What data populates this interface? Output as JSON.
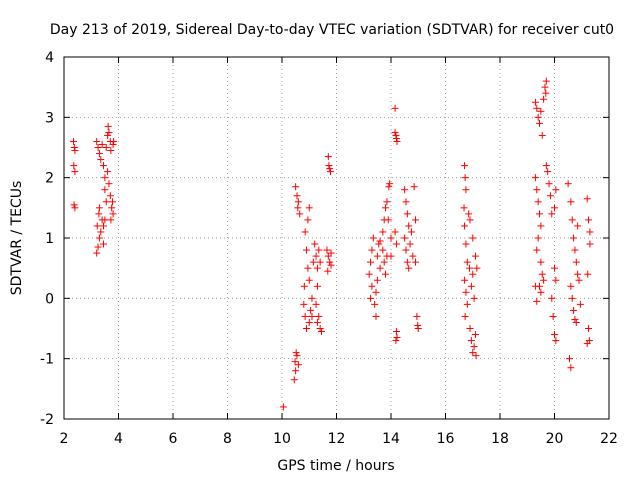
{
  "chart_data": {
    "type": "scatter",
    "title": "Day 213 of 2019, Sidereal Day-to-day VTEC variation (SDTVAR) for receiver cut0",
    "xlabel": "GPS time / hours",
    "ylabel": "SDTVAR / TECUs",
    "xlim": [
      2,
      22
    ],
    "ylim": [
      -2,
      4
    ],
    "xticks": [
      "2",
      "4",
      "6",
      "8",
      "10",
      "12",
      "14",
      "16",
      "18",
      "20",
      "22"
    ],
    "yticks": [
      "-2",
      "-1",
      "0",
      "1",
      "2",
      "3",
      "4"
    ],
    "grid": true,
    "marker": "+",
    "color": "#ff0000",
    "series": [
      {
        "name": "SDTVAR",
        "points": [
          [
            2.35,
            2.6
          ],
          [
            2.38,
            2.5
          ],
          [
            2.4,
            2.45
          ],
          [
            2.36,
            2.2
          ],
          [
            2.4,
            2.1
          ],
          [
            2.37,
            1.55
          ],
          [
            2.4,
            1.5
          ],
          [
            3.2,
            0.75
          ],
          [
            3.25,
            0.85
          ],
          [
            3.3,
            1.0
          ],
          [
            3.22,
            1.2
          ],
          [
            3.28,
            1.4
          ],
          [
            3.35,
            1.1
          ],
          [
            3.4,
            1.3
          ],
          [
            3.3,
            1.5
          ],
          [
            3.45,
            1.2
          ],
          [
            3.2,
            2.6
          ],
          [
            3.25,
            2.5
          ],
          [
            3.3,
            2.4
          ],
          [
            3.35,
            2.3
          ],
          [
            3.4,
            2.55
          ],
          [
            3.45,
            2.2
          ],
          [
            3.5,
            2.0
          ],
          [
            3.5,
            1.8
          ],
          [
            3.55,
            1.6
          ],
          [
            3.5,
            1.3
          ],
          [
            3.45,
            0.9
          ],
          [
            3.55,
            2.5
          ],
          [
            3.6,
            2.7
          ],
          [
            3.62,
            2.85
          ],
          [
            3.65,
            2.75
          ],
          [
            3.7,
            2.6
          ],
          [
            3.72,
            2.45
          ],
          [
            3.6,
            2.1
          ],
          [
            3.65,
            1.9
          ],
          [
            3.7,
            1.7
          ],
          [
            3.75,
            1.5
          ],
          [
            3.72,
            1.3
          ],
          [
            3.8,
            1.4
          ],
          [
            3.78,
            1.6
          ],
          [
            3.8,
            2.55
          ],
          [
            3.82,
            2.6
          ],
          [
            10.05,
            -1.8
          ],
          [
            10.45,
            -1.35
          ],
          [
            10.5,
            -1.2
          ],
          [
            10.48,
            -1.05
          ],
          [
            10.55,
            -0.95
          ],
          [
            10.6,
            -1.1
          ],
          [
            10.52,
            -0.9
          ],
          [
            10.5,
            1.85
          ],
          [
            10.55,
            1.7
          ],
          [
            10.6,
            1.6
          ],
          [
            10.58,
            1.5
          ],
          [
            10.65,
            1.4
          ],
          [
            10.8,
            -0.1
          ],
          [
            10.85,
            -0.3
          ],
          [
            10.9,
            -0.5
          ],
          [
            10.82,
            0.2
          ],
          [
            10.95,
            0.5
          ],
          [
            10.9,
            0.8
          ],
          [
            10.85,
            1.1
          ],
          [
            10.95,
            1.3
          ],
          [
            11.0,
            1.5
          ],
          [
            11.0,
            0.3
          ],
          [
            11.05,
            -0.2
          ],
          [
            11.0,
            -0.4
          ],
          [
            11.1,
            0.0
          ],
          [
            11.1,
            -0.3
          ],
          [
            11.15,
            0.6
          ],
          [
            11.2,
            0.9
          ],
          [
            11.25,
            0.7
          ],
          [
            11.3,
            0.5
          ],
          [
            11.35,
            0.8
          ],
          [
            11.4,
            0.6
          ],
          [
            11.3,
            0.2
          ],
          [
            11.25,
            -0.1
          ],
          [
            11.35,
            -0.3
          ],
          [
            11.4,
            -0.5
          ],
          [
            11.45,
            -0.55
          ],
          [
            11.3,
            -0.4
          ],
          [
            11.7,
            2.35
          ],
          [
            11.72,
            2.2
          ],
          [
            11.75,
            2.15
          ],
          [
            11.78,
            2.1
          ],
          [
            11.65,
            0.8
          ],
          [
            11.7,
            0.7
          ],
          [
            11.75,
            0.6
          ],
          [
            11.8,
            0.55
          ],
          [
            11.68,
            0.45
          ],
          [
            11.8,
            0.75
          ],
          [
            13.2,
            0.4
          ],
          [
            13.25,
            0.6
          ],
          [
            13.3,
            0.8
          ],
          [
            13.35,
            1.0
          ],
          [
            13.3,
            0.2
          ],
          [
            13.25,
            0.0
          ],
          [
            13.4,
            -0.1
          ],
          [
            13.45,
            -0.3
          ],
          [
            13.5,
            0.7
          ],
          [
            13.55,
            0.9
          ],
          [
            13.6,
            0.5
          ],
          [
            13.5,
            0.3
          ],
          [
            13.45,
            0.1
          ],
          [
            13.6,
            0.95
          ],
          [
            13.7,
            1.1
          ],
          [
            13.75,
            1.3
          ],
          [
            13.8,
            1.5
          ],
          [
            13.85,
            1.6
          ],
          [
            13.9,
            1.3
          ],
          [
            13.7,
            0.8
          ],
          [
            13.75,
            0.6
          ],
          [
            13.8,
            0.4
          ],
          [
            13.85,
            0.7
          ],
          [
            13.95,
            1.9
          ],
          [
            13.92,
            1.85
          ],
          [
            14.0,
            1.0
          ],
          [
            14.0,
            0.7
          ],
          [
            14.15,
            3.15
          ],
          [
            14.15,
            2.75
          ],
          [
            14.2,
            2.65
          ],
          [
            14.22,
            2.6
          ],
          [
            14.18,
            2.7
          ],
          [
            14.2,
            -0.55
          ],
          [
            14.22,
            -0.65
          ],
          [
            14.18,
            -0.7
          ],
          [
            14.15,
            1.1
          ],
          [
            14.2,
            0.9
          ],
          [
            14.5,
            1.8
          ],
          [
            14.55,
            1.6
          ],
          [
            14.6,
            1.4
          ],
          [
            14.65,
            1.2
          ],
          [
            14.5,
            1.0
          ],
          [
            14.55,
            0.8
          ],
          [
            14.6,
            0.6
          ],
          [
            14.65,
            0.5
          ],
          [
            14.7,
            0.9
          ],
          [
            14.75,
            1.1
          ],
          [
            14.8,
            0.7
          ],
          [
            14.85,
            1.85
          ],
          [
            14.9,
            0.6
          ],
          [
            14.95,
            -0.3
          ],
          [
            14.98,
            -0.45
          ],
          [
            15.0,
            -0.5
          ],
          [
            14.9,
            1.3
          ],
          [
            16.7,
            2.2
          ],
          [
            16.72,
            2.0
          ],
          [
            16.75,
            1.8
          ],
          [
            16.68,
            1.5
          ],
          [
            16.7,
            1.2
          ],
          [
            16.75,
            0.9
          ],
          [
            16.8,
            0.6
          ],
          [
            16.7,
            0.3
          ],
          [
            16.75,
            0.1
          ],
          [
            16.8,
            -0.1
          ],
          [
            16.72,
            -0.3
          ],
          [
            16.85,
            1.4
          ],
          [
            16.9,
            1.3
          ],
          [
            16.88,
            0.5
          ],
          [
            16.95,
            0.2
          ],
          [
            16.9,
            -0.5
          ],
          [
            16.95,
            -0.7
          ],
          [
            17.0,
            -0.9
          ],
          [
            17.05,
            -0.8
          ],
          [
            17.1,
            -0.6
          ],
          [
            17.05,
            0.0
          ],
          [
            17.0,
            0.4
          ],
          [
            17.1,
            0.7
          ],
          [
            17.15,
            0.5
          ],
          [
            17.0,
            1.0
          ],
          [
            17.12,
            -0.95
          ],
          [
            19.3,
            3.25
          ],
          [
            19.35,
            3.15
          ],
          [
            19.4,
            3.0
          ],
          [
            19.45,
            2.9
          ],
          [
            19.5,
            3.1
          ],
          [
            19.6,
            3.3
          ],
          [
            19.65,
            3.5
          ],
          [
            19.7,
            3.6
          ],
          [
            19.68,
            3.4
          ],
          [
            19.55,
            2.7
          ],
          [
            19.3,
            2.0
          ],
          [
            19.35,
            1.8
          ],
          [
            19.4,
            1.6
          ],
          [
            19.45,
            1.4
          ],
          [
            19.5,
            1.2
          ],
          [
            19.4,
            1.0
          ],
          [
            19.35,
            0.8
          ],
          [
            19.5,
            0.6
          ],
          [
            19.55,
            0.4
          ],
          [
            19.45,
            0.2
          ],
          [
            19.5,
            0.1
          ],
          [
            19.6,
            0.3
          ],
          [
            19.3,
            0.2
          ],
          [
            19.35,
            -0.05
          ],
          [
            19.7,
            2.2
          ],
          [
            19.75,
            2.1
          ],
          [
            19.8,
            1.9
          ],
          [
            19.85,
            1.7
          ],
          [
            19.9,
            1.4
          ],
          [
            20.0,
            1.5
          ],
          [
            20.05,
            1.8
          ],
          [
            20.0,
            0.5
          ],
          [
            20.05,
            0.3
          ],
          [
            19.9,
            0.0
          ],
          [
            19.95,
            -0.3
          ],
          [
            20.0,
            -0.6
          ],
          [
            20.05,
            -0.7
          ],
          [
            20.5,
            1.9
          ],
          [
            20.6,
            1.6
          ],
          [
            20.65,
            1.3
          ],
          [
            20.7,
            1.0
          ],
          [
            20.75,
            0.8
          ],
          [
            20.8,
            0.6
          ],
          [
            20.85,
            0.4
          ],
          [
            20.6,
            0.2
          ],
          [
            20.65,
            0.0
          ],
          [
            20.7,
            -0.2
          ],
          [
            20.75,
            -0.35
          ],
          [
            20.8,
            -0.4
          ],
          [
            20.55,
            -1.0
          ],
          [
            20.6,
            -1.15
          ],
          [
            20.85,
            1.2
          ],
          [
            20.9,
            0.3
          ],
          [
            20.95,
            -0.1
          ],
          [
            21.2,
            1.65
          ],
          [
            21.25,
            1.3
          ],
          [
            21.3,
            0.9
          ],
          [
            21.22,
            0.4
          ],
          [
            21.25,
            -0.5
          ],
          [
            21.28,
            -0.7
          ],
          [
            21.2,
            -0.75
          ],
          [
            21.3,
            1.1
          ]
        ]
      }
    ]
  }
}
